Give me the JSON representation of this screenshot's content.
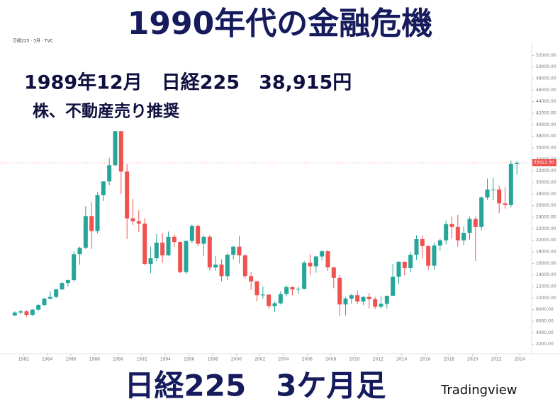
{
  "title": "1990年代の金融危機",
  "annotation_1": "1989年12月　日経225　38,915円",
  "annotation_2": "株、不動産売り推奨",
  "footer_title": "日経225　3ケ月足",
  "source": "Tradingview",
  "symbol_line": "日経225 · 3月 · TVC",
  "chart_data": {
    "type": "candlestick",
    "x": [
      1981.25,
      1981.75,
      1982.25,
      1982.75,
      1983.25,
      1983.75,
      1984.25,
      1984.75,
      1985.25,
      1985.75,
      1986.25,
      1986.75,
      1987.25,
      1987.75,
      1988.25,
      1988.75,
      1989.25,
      1989.75,
      1990.25,
      1990.75,
      1991.25,
      1991.75,
      1992.25,
      1992.75,
      1993.25,
      1993.75,
      1994.25,
      1994.75,
      1995.25,
      1995.75,
      1996.25,
      1996.75,
      1997.25,
      1997.75,
      1998.25,
      1998.75,
      1999.25,
      1999.75,
      2000.25,
      2000.75,
      2001.25,
      2001.75,
      2002.25,
      2002.75,
      2003.25,
      2003.75,
      2004.25,
      2004.75,
      2005.25,
      2005.75,
      2006.25,
      2006.75,
      2007.25,
      2007.75,
      2008.25,
      2008.75,
      2009.25,
      2009.75,
      2010.25,
      2010.75,
      2011.25,
      2011.75,
      2012.25,
      2012.75,
      2013.25,
      2013.75,
      2014.25,
      2014.75,
      2015.25,
      2015.75,
      2016.25,
      2016.75,
      2017.25,
      2017.75,
      2018.25,
      2018.75,
      2019.25,
      2019.75,
      2020.25,
      2020.75,
      2021.25,
      2021.75,
      2022.25,
      2022.75,
      2023.25,
      2023.75
    ],
    "open": [
      7000,
      7500,
      7700,
      7100,
      8000,
      8800,
      9900,
      10200,
      11500,
      12600,
      13100,
      17600,
      18700,
      24200,
      21600,
      27800,
      30200,
      33000,
      38900,
      31900,
      23800,
      23300,
      22900,
      15900,
      16900,
      19600,
      17400,
      20600,
      19700,
      14500,
      19900,
      22500,
      19400,
      20600,
      15300,
      15800,
      13800,
      17500,
      18900,
      17400,
      13800,
      12900,
      10500,
      10600,
      8600,
      9100,
      10700,
      11900,
      11500,
      11600,
      16100,
      15500,
      17200,
      18100,
      15300,
      13500,
      8900,
      9900,
      10500,
      9400,
      10200,
      9800,
      8500,
      9000,
      10400,
      13700,
      16300,
      15200,
      17500,
      20200,
      19000,
      15600,
      19100,
      20000,
      22800,
      22300,
      20000,
      21300,
      23700,
      22300,
      27400,
      28800,
      28800,
      26400,
      26100,
      33200
    ],
    "high": [
      7700,
      8000,
      7900,
      8100,
      9000,
      10000,
      11200,
      11600,
      12800,
      13200,
      18100,
      18900,
      25900,
      26600,
      28300,
      30200,
      34300,
      38957,
      38900,
      33200,
      27200,
      25200,
      23800,
      18900,
      21100,
      21300,
      21500,
      21000,
      19800,
      20000,
      22700,
      22700,
      20900,
      20900,
      17300,
      16700,
      17800,
      19000,
      20800,
      17600,
      14500,
      13000,
      12000,
      10700,
      9400,
      11200,
      12200,
      12000,
      12000,
      16400,
      17600,
      17300,
      18300,
      18300,
      15400,
      14000,
      10200,
      10800,
      11300,
      10300,
      10900,
      10200,
      10300,
      10400,
      15900,
      16300,
      16300,
      18000,
      20900,
      20900,
      19100,
      19600,
      20300,
      23400,
      24100,
      24400,
      22400,
      24100,
      24100,
      27600,
      30700,
      30800,
      29400,
      29200,
      33800,
      33800
    ],
    "low": [
      6900,
      7200,
      6800,
      6900,
      7800,
      8600,
      9700,
      10000,
      11400,
      12000,
      12900,
      15800,
      18500,
      18500,
      21200,
      26800,
      29500,
      32800,
      28000,
      20200,
      22600,
      21400,
      15700,
      14300,
      16400,
      16100,
      17300,
      18900,
      14300,
      14200,
      19500,
      19000,
      17300,
      14800,
      14700,
      12900,
      13100,
      16700,
      16000,
      13400,
      11400,
      9400,
      9900,
      8200,
      7600,
      8900,
      10300,
      10500,
      10800,
      11500,
      14000,
      14400,
      16500,
      14700,
      11700,
      6900,
      7000,
      9000,
      9000,
      8800,
      8200,
      8100,
      8200,
      8200,
      10400,
      12400,
      13900,
      14500,
      16600,
      16900,
      14900,
      14900,
      18200,
      19300,
      20300,
      18900,
      19200,
      20100,
      16400,
      21700,
      27000,
      26900,
      24700,
      25500,
      25700,
      31400
    ],
    "close": [
      7500,
      7700,
      7100,
      8000,
      8800,
      9900,
      10200,
      11500,
      12600,
      13100,
      17600,
      18700,
      24200,
      21600,
      27800,
      30200,
      33000,
      38900,
      31900,
      23800,
      23300,
      22900,
      15900,
      16900,
      19600,
      17400,
      20600,
      19700,
      14500,
      19900,
      22500,
      19400,
      20600,
      15300,
      15800,
      13800,
      17500,
      18900,
      17400,
      13800,
      12900,
      10500,
      10600,
      8600,
      9100,
      10700,
      11900,
      11500,
      11600,
      16100,
      15500,
      17200,
      18100,
      15300,
      13500,
      8900,
      9900,
      10500,
      9400,
      10200,
      9800,
      8500,
      9000,
      10400,
      13700,
      16300,
      15200,
      17500,
      20200,
      19000,
      15600,
      19100,
      20000,
      22800,
      22300,
      20000,
      21300,
      23700,
      22300,
      27400,
      28800,
      28800,
      26400,
      26100,
      33200,
      33400
    ],
    "up_color": "#26a69a",
    "down_color": "#ef5350",
    "price_tag": {
      "value": 33422.3,
      "label": "33422.30"
    },
    "xlim": [
      1980,
      2025
    ],
    "xticks": [
      1982,
      1984,
      1986,
      1988,
      1990,
      1992,
      1994,
      1996,
      1998,
      2000,
      2002,
      2004,
      2006,
      2008,
      2010,
      2012,
      2014,
      2016,
      2018,
      2020,
      2022,
      2024
    ],
    "ylim": [
      0,
      54000
    ],
    "yticks": [
      {
        "value": 2000,
        "label": "2000.00"
      },
      {
        "value": 4000,
        "label": "4000.00"
      },
      {
        "value": 6000,
        "label": "6000.00"
      },
      {
        "value": 8000,
        "label": "8000.00"
      },
      {
        "value": 10000,
        "label": "10000.00"
      },
      {
        "value": 12000,
        "label": "12000.00"
      },
      {
        "value": 14000,
        "label": "14000.00"
      },
      {
        "value": 16000,
        "label": "16000.00"
      },
      {
        "value": 18000,
        "label": "18000.00"
      },
      {
        "value": 20000,
        "label": "20000.00"
      },
      {
        "value": 22000,
        "label": "22000.00"
      },
      {
        "value": 24000,
        "label": "24000.00"
      },
      {
        "value": 26000,
        "label": "26000.00"
      },
      {
        "value": 28000,
        "label": "28000.00"
      },
      {
        "value": 30000,
        "label": "30000.00"
      },
      {
        "value": 32000,
        "label": "32000.00"
      },
      {
        "value": 34000,
        "label": "34000.00"
      },
      {
        "value": 36000,
        "label": "36000.00"
      },
      {
        "value": 38000,
        "label": "38000.00"
      },
      {
        "value": 40000,
        "label": "40000.00"
      },
      {
        "value": 42000,
        "label": "42000.00"
      },
      {
        "value": 44000,
        "label": "44000.00"
      },
      {
        "value": 46000,
        "label": "46000.00"
      },
      {
        "value": 48000,
        "label": "48000.00"
      },
      {
        "value": 50000,
        "label": "50000.00"
      },
      {
        "value": 52000,
        "label": "52000.00"
      }
    ]
  }
}
